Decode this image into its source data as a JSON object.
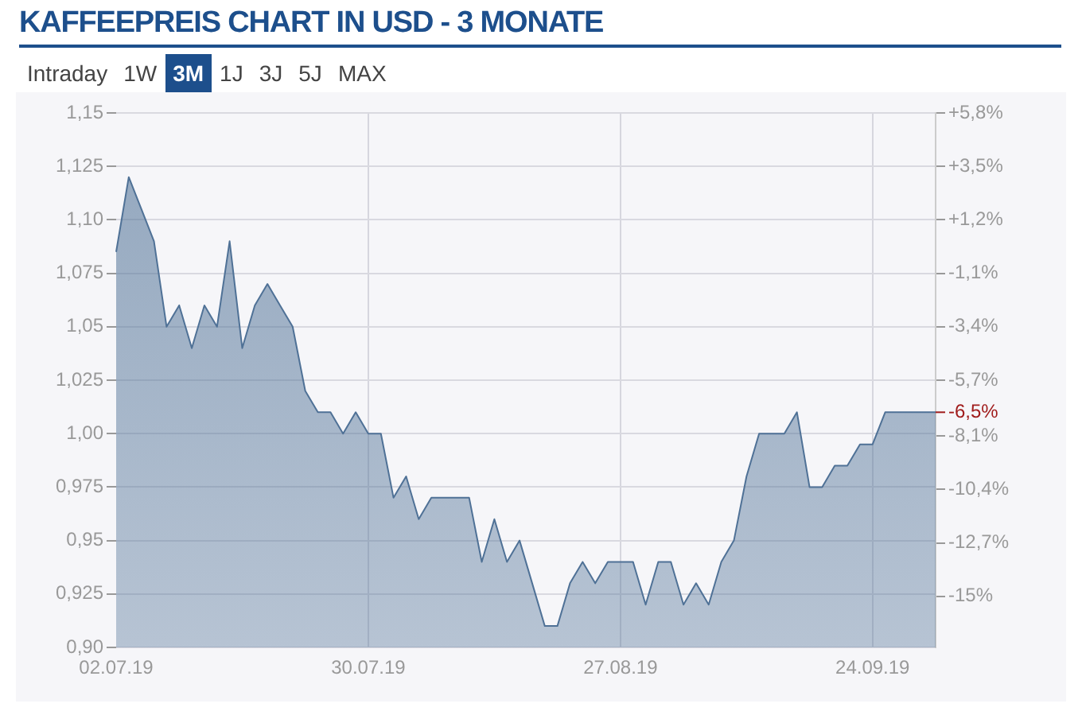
{
  "chart_data": {
    "type": "area",
    "title": "KAFFEEPREIS CHART IN USD - 3 MONATE",
    "annotations": [
      "Intraday",
      "1W",
      "3M",
      "1J",
      "3J",
      "5J",
      "MAX",
      "-6,5%"
    ],
    "categories": [
      "02.07.19",
      null,
      null,
      null,
      null,
      null,
      null,
      null,
      null,
      null,
      null,
      null,
      null,
      null,
      null,
      null,
      null,
      null,
      null,
      null,
      "30.07.19",
      null,
      null,
      null,
      null,
      null,
      null,
      null,
      null,
      null,
      null,
      null,
      null,
      null,
      null,
      null,
      null,
      null,
      null,
      null,
      "27.08.19",
      null,
      null,
      null,
      null,
      null,
      null,
      null,
      null,
      null,
      null,
      null,
      null,
      null,
      null,
      null,
      null,
      null,
      null,
      null,
      "24.09.19",
      null,
      null,
      null,
      null,
      null
    ],
    "series": [
      {
        "color": "#4f7196",
        "values": [
          1.085,
          1.12,
          1.105,
          1.09,
          1.05,
          1.06,
          1.04,
          1.06,
          1.05,
          1.09,
          1.04,
          1.06,
          1.07,
          1.06,
          1.05,
          1.02,
          1.01,
          1.01,
          1.0,
          1.01,
          1.0,
          1.0,
          0.97,
          0.98,
          0.96,
          0.97,
          0.97,
          0.97,
          0.97,
          0.94,
          0.96,
          0.94,
          0.95,
          0.93,
          0.91,
          0.91,
          0.93,
          0.94,
          0.93,
          0.94,
          0.94,
          0.94,
          0.92,
          0.94,
          0.94,
          0.92,
          0.93,
          0.92,
          0.94,
          0.95,
          0.98,
          1.0,
          1.0,
          1.0,
          1.01,
          0.975,
          0.975,
          0.985,
          0.985,
          0.995,
          0.995,
          1.01,
          1.01,
          1.01,
          1.01,
          1.01
        ]
      }
    ],
    "ylim": [
      0.9,
      1.15
    ],
    "yticks": [
      {
        "value": 0.9,
        "label": "0,90"
      },
      {
        "value": 0.925,
        "label": "0,925"
      },
      {
        "value": 0.95,
        "label": "0,95"
      },
      {
        "value": 0.975,
        "label": "0,975"
      },
      {
        "value": 1.0,
        "label": "1,00"
      },
      {
        "value": 1.025,
        "label": "1,025"
      },
      {
        "value": 1.05,
        "label": "1,05"
      },
      {
        "value": 1.075,
        "label": "1,075"
      },
      {
        "value": 1.1,
        "label": "1,10"
      },
      {
        "value": 1.125,
        "label": "1,125"
      },
      {
        "value": 1.15,
        "label": "1,15"
      }
    ],
    "y2lim": [
      -17.2,
      5.8
    ],
    "y2ticks": [
      {
        "value": -15,
        "label": "-15%"
      },
      {
        "value": -12.7,
        "label": "-12,7%"
      },
      {
        "value": -10.4,
        "label": "-10,4%"
      },
      {
        "value": -8.1,
        "label": "-8,1%"
      },
      {
        "value": -5.7,
        "label": "-5,7%"
      },
      {
        "value": -3.4,
        "label": "-3,4%"
      },
      {
        "value": -1.1,
        "label": "-1,1%"
      },
      {
        "value": 1.2,
        "label": "+1,2%"
      },
      {
        "value": 3.5,
        "label": "+3,5%"
      },
      {
        "value": 5.8,
        "label": "+5,8%"
      }
    ],
    "grid": true,
    "marker": "none",
    "line_style": "solid",
    "legend": false
  }
}
